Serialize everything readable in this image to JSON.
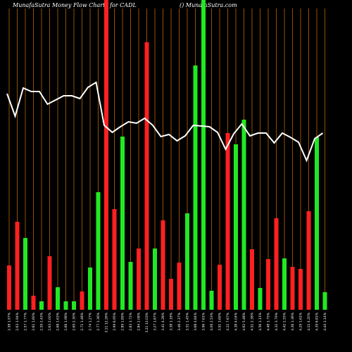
{
  "chart_data": {
    "type": "bar",
    "title": "MunafaSutra  Money Flow  Charts for CADL",
    "subtitle": "() MunafaSutra.com",
    "categories": [
      "2.58 1.97%",
      "2.63 1.94%",
      "2.57 1.77%",
      "2.61 1.60%",
      "2.59 2.43%",
      "2.63 2.00%",
      "2.68 1.63%",
      "2.66 1.98%",
      "2.69 2.30%",
      "2.71 1.48%",
      "2.74 1.27%",
      "2.77 1.36%",
      "3.11 12.26%",
      "2.99 6.95%",
      "2.89 1.89%",
      "2.83 1.72%",
      "2.84 2.08%",
      "3.21 13.03%",
      "3.27 1.87%",
      "3.41 4.28%",
      "3.38 1.18%",
      "3.46 2.37%",
      "3.51 1.45%",
      "3.68 4.84%",
      "3.96 7.61%",
      "4.06 2.53%",
      "3.91 3.69%",
      "4.21 7.67%",
      "4.38 4.04%",
      "4.62 5.48%",
      "4.51 2.38%",
      "4.56 1.11%",
      "4.48 1.75%",
      "4.31 3.79%",
      "4.42 2.55%",
      "4.36 1.36%",
      "4.29 1.61%",
      "4.11 4.20%",
      "4.39 6.81%",
      "4.44 1.14%"
    ],
    "values": [
      63,
      125,
      102,
      20,
      12,
      76,
      32,
      12,
      12,
      26,
      60,
      167,
      440,
      143,
      246,
      68,
      87,
      380,
      87,
      127,
      44,
      67,
      137,
      347,
      440,
      27,
      64,
      251,
      235,
      270,
      86,
      31,
      72,
      130,
      73,
      61,
      58,
      140,
      245,
      25
    ],
    "bar_colors": [
      "#ff2020",
      "#ff2020",
      "#22e822",
      "#ff2020",
      "#22e822",
      "#ff2020",
      "#22e822",
      "#22e822",
      "#22e822",
      "#ff2020",
      "#22e822",
      "#22e822",
      "#ff2020",
      "#ff2020",
      "#22e822",
      "#22e822",
      "#ff2020",
      "#ff2020",
      "#22e822",
      "#ff2020",
      "#ff2020",
      "#ff2020",
      "#22e822",
      "#22e822",
      "#22e822",
      "#22e822",
      "#ff2020",
      "#ff2020",
      "#22e822",
      "#22e822",
      "#ff2020",
      "#22e822",
      "#ff2020",
      "#ff2020",
      "#22e822",
      "#ff2020",
      "#ff2020",
      "#ff2020",
      "#22e822",
      "#22e822"
    ],
    "line_values": [
      307,
      275,
      315,
      310,
      310,
      292,
      298,
      304,
      304,
      300,
      316,
      323,
      262,
      252,
      260,
      267,
      265,
      272,
      262,
      246,
      249,
      240,
      247,
      262,
      261,
      260,
      252,
      228,
      250,
      264,
      247,
      251,
      251,
      237,
      251,
      245,
      238,
      212,
      243,
      251
    ],
    "line_color": "#ffffff",
    "grid_color": "#b8650a",
    "ylim": [
      0,
      440
    ]
  }
}
